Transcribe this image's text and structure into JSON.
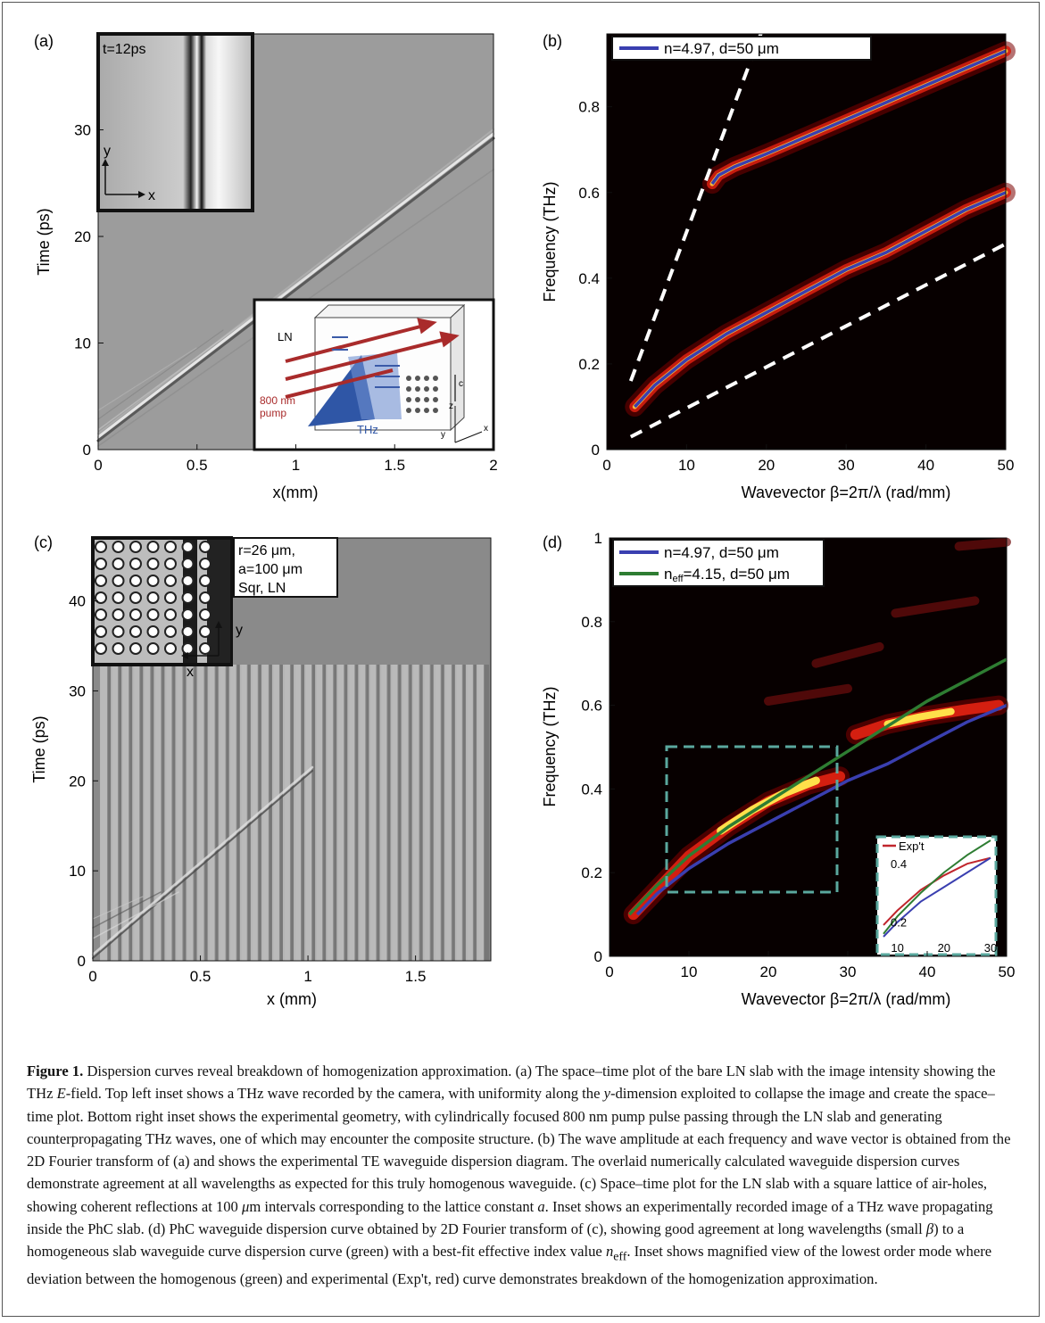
{
  "panels": {
    "a": {
      "label": "(a)",
      "ylabel": "Time (ps)",
      "xlabel": "x(mm)",
      "inset_time": "t=12ps",
      "inset_axis_y": "y",
      "inset_axis_x": "x",
      "geometry": {
        "ln": "LN",
        "pump1": "800 nm",
        "pump2": "pump",
        "thz": "THz",
        "c": "c",
        "x": "x",
        "y": "y",
        "z": "z"
      }
    },
    "b": {
      "label": "(b)",
      "legend": "n=4.97, d=50 μm",
      "xlabel": "Wavevector β=2π/λ (rad/mm)",
      "ylabel": "Frequency (THz)"
    },
    "c": {
      "label": "(c)",
      "ylabel": "Time (ps)",
      "xlabel": "x (mm)",
      "inset_line1": "r=26 μm,",
      "inset_line2": "a=100 μm",
      "inset_line3": "Sqr, LN",
      "inset_axis_y": "y",
      "inset_axis_x": "x"
    },
    "d": {
      "label": "(d)",
      "legend1": "n=4.97, d=50 μm",
      "legend2_pre": "n",
      "legend2_sub": "eff",
      "legend2_post": "=4.15, d=50 μm",
      "xlabel": "Wavevector β=2π/λ (rad/mm)",
      "ylabel": "Frequency (THz)",
      "inset_legend": "Exp't"
    }
  },
  "chart_data": [
    {
      "id": "a",
      "type": "heatmap",
      "xlabel": "x(mm)",
      "ylabel": "Time (ps)",
      "xlim": [
        0,
        2
      ],
      "ylim": [
        0,
        39
      ],
      "xticks": [
        0,
        0.5,
        1,
        1.5,
        2
      ],
      "yticks": [
        0,
        10,
        20,
        30
      ]
    },
    {
      "id": "b",
      "type": "line",
      "xlabel": "Wavevector β=2π/λ (rad/mm)",
      "ylabel": "Frequency (THz)",
      "xlim": [
        0,
        50
      ],
      "ylim": [
        0,
        0.97
      ],
      "xticks": [
        0,
        10,
        20,
        30,
        40,
        50
      ],
      "yticks": [
        0,
        0.2,
        0.4,
        0.6,
        0.8
      ],
      "series": [
        {
          "name": "n=4.97, d=50 μm",
          "color": "#3a3fb0",
          "branches": [
            {
              "x": [
                3.5,
                6,
                10,
                15,
                20,
                25,
                30,
                35,
                40,
                45,
                50
              ],
              "y": [
                0.1,
                0.15,
                0.21,
                0.27,
                0.32,
                0.37,
                0.42,
                0.46,
                0.51,
                0.56,
                0.6
              ]
            },
            {
              "x": [
                13.2,
                14,
                16,
                20,
                25,
                30,
                35,
                40,
                45,
                50
              ],
              "y": [
                0.62,
                0.64,
                0.66,
                0.69,
                0.73,
                0.77,
                0.81,
                0.85,
                0.89,
                0.93
              ]
            }
          ]
        }
      ],
      "light_lines": [
        {
          "x": [
            3,
            19.5
          ],
          "y": [
            0.16,
            0.98
          ]
        },
        {
          "x": [
            3,
            50
          ],
          "y": [
            0.03,
            0.48
          ]
        }
      ]
    },
    {
      "id": "c",
      "type": "heatmap",
      "xlabel": "x (mm)",
      "ylabel": "Time (ps)",
      "xlim": [
        0,
        1.85
      ],
      "ylim": [
        0,
        47
      ],
      "xticks": [
        0,
        0.5,
        1,
        1.5
      ],
      "yticks": [
        0,
        10,
        20,
        30,
        40
      ]
    },
    {
      "id": "d",
      "type": "line",
      "xlabel": "Wavevector β=2π/λ (rad/mm)",
      "ylabel": "Frequency (THz)",
      "xlim": [
        0,
        50
      ],
      "ylim": [
        0,
        1
      ],
      "xticks": [
        0,
        10,
        20,
        30,
        40,
        50
      ],
      "yticks": [
        0,
        0.2,
        0.4,
        0.6,
        0.8,
        1
      ],
      "series": [
        {
          "name": "n=4.97, d=50 μm",
          "color": "#3a3fb0",
          "x": [
            3.5,
            6,
            10,
            15,
            20,
            25,
            30,
            35,
            40,
            45,
            50
          ],
          "y": [
            0.1,
            0.15,
            0.21,
            0.27,
            0.32,
            0.37,
            0.42,
            0.46,
            0.51,
            0.56,
            0.6
          ]
        },
        {
          "name": "neff=4.15, d=50 μm",
          "color": "#2e7d32",
          "x": [
            2.5,
            6,
            10,
            15,
            20,
            25,
            30,
            35,
            40,
            45,
            50
          ],
          "y": [
            0.1,
            0.17,
            0.24,
            0.31,
            0.37,
            0.43,
            0.49,
            0.55,
            0.61,
            0.66,
            0.71
          ]
        }
      ],
      "inset": {
        "xlim": [
          7,
          30
        ],
        "ylim": [
          0.15,
          0.48
        ],
        "xticks": [
          10,
          20,
          30
        ],
        "yticks": [
          0.2,
          0.4
        ],
        "series": [
          {
            "name": "Exp't",
            "color": "#c0262d",
            "x": [
              7,
              10,
              15,
              20,
              25,
              30
            ],
            "y": [
              0.19,
              0.24,
              0.31,
              0.36,
              0.4,
              0.42
            ]
          },
          {
            "color": "#2e7d32",
            "x": [
              7,
              10,
              15,
              20,
              25,
              30
            ],
            "y": [
              0.16,
              0.22,
              0.3,
              0.37,
              0.43,
              0.48
            ]
          },
          {
            "color": "#3a3fb0",
            "x": [
              7,
              10,
              15,
              20,
              25,
              30
            ],
            "y": [
              0.15,
              0.2,
              0.27,
              0.32,
              0.37,
              0.42
            ]
          }
        ]
      }
    }
  ],
  "caption": {
    "title": "Figure 1.",
    "s1": " Dispersion curves reveal breakdown of homogenization approximation. (a) The space–time plot of the bare LN slab with the image intensity showing the THz ",
    "e": "E",
    "s2": "-field. Top left inset shows a THz wave recorded by the camera, with uniformity along the ",
    "y": "y",
    "s3": "-dimension exploited to collapse the image and create the space–time plot. Bottom right inset shows the experimental geometry, with cylindrically focused 800 nm pump pulse passing through the LN slab and generating counterpropagating THz waves, one of which may encounter the composite structure. (b) The wave amplitude at each frequency and wave vector is obtained from the 2D Fourier transform of (a) and shows the experimental TE waveguide dispersion diagram. The overlaid numerically calculated waveguide dispersion curves demonstrate agreement at all wavelengths as expected for this truly homogenous waveguide. (c) Space–time plot for the LN slab with a square lattice of air-holes, showing coherent reflections at 100 ",
    "mu": "μ",
    "s4": "m intervals corresponding to the lattice constant ",
    "a": "a",
    "s5": ". Inset shows an experimentally recorded image of a THz wave propagating inside the PhC slab. (d) PhC waveguide dispersion curve obtained by 2D Fourier transform of (c), showing good agreement at long wavelengths (small ",
    "beta": "β",
    "s6": ") to a homogeneous slab waveguide curve dispersion curve (green) with a best-fit effective index value ",
    "neff": "n",
    "neff_sub": "eff",
    "s7": ". Inset shows magnified view of the lowest order mode where deviation between the homogenous (green) and experimental (Exp't, red) curve demonstrates breakdown of the homogenization approximation."
  }
}
